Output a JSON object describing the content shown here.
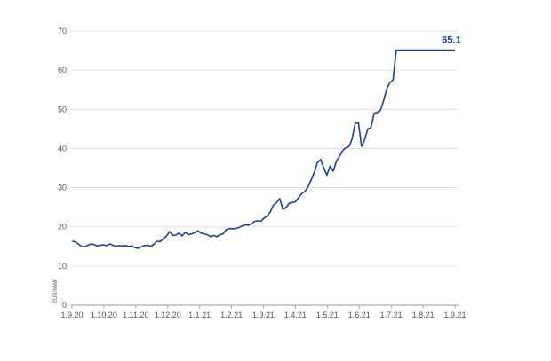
{
  "chart_data": {
    "type": "line",
    "title": "",
    "xlabel": "",
    "ylabel": "EUR/MWh",
    "ylim": [
      0,
      70
    ],
    "yticks": [
      0,
      10,
      20,
      30,
      40,
      50,
      60,
      70
    ],
    "grid": true,
    "legend": "none",
    "x_tick_labels": [
      "1.9.20",
      "1.10.20",
      "1.11.20",
      "1.12.20",
      "1.1.21",
      "1.2.21",
      "1.3.21",
      "1.4.21",
      "1.5.21",
      "1.6.21",
      "1.7.21",
      "1.8.21",
      "1.9.21"
    ],
    "last_value_label": "65.1",
    "color": "#1f3f8f",
    "series": [
      {
        "x": [
          0,
          3,
          6,
          9,
          12,
          15,
          18,
          21,
          24,
          27,
          30,
          33,
          36,
          39,
          42,
          45,
          48,
          51,
          54,
          57,
          60,
          63,
          66,
          69,
          72,
          75,
          78,
          81,
          84,
          87,
          90,
          93,
          96,
          99,
          102,
          105,
          108,
          111,
          114,
          117,
          120,
          123,
          126,
          129,
          132,
          135,
          138,
          141,
          144,
          147,
          150,
          153,
          156,
          159,
          162,
          165,
          168,
          171,
          174,
          177,
          180,
          183,
          186,
          189,
          192,
          195,
          198,
          201,
          204,
          207,
          210,
          213,
          216,
          219,
          222,
          225,
          228,
          231,
          234,
          237,
          240,
          243,
          246,
          249,
          252,
          255,
          258,
          261,
          264,
          267,
          270,
          273,
          276,
          279,
          282,
          285,
          288,
          291,
          294,
          297,
          300,
          303,
          306,
          309,
          312,
          315,
          318,
          321,
          324,
          327,
          330,
          333,
          336,
          339,
          342,
          345,
          348,
          351,
          354,
          357,
          360,
          363,
          365
        ],
        "values": [
          16.3,
          16.2,
          15.6,
          15.0,
          14.9,
          15.3,
          15.6,
          15.5,
          15.1,
          15.3,
          15.4,
          15.2,
          15.6,
          15.3,
          15.0,
          15.2,
          15.1,
          15.2,
          15.0,
          15.1,
          14.7,
          14.5,
          14.9,
          15.2,
          15.3,
          15.0,
          15.5,
          16.3,
          16.2,
          17.0,
          17.6,
          18.8,
          17.8,
          17.9,
          18.4,
          17.7,
          18.6,
          18.0,
          18.2,
          18.5,
          19.0,
          18.4,
          18.2,
          18.0,
          17.5,
          17.8,
          17.5,
          18.0,
          18.2,
          19.3,
          19.6,
          19.5,
          19.6,
          19.8,
          20.2,
          20.5,
          20.4,
          20.8,
          21.4,
          21.5,
          21.4,
          22.2,
          22.8,
          23.8,
          25.5,
          26.2,
          27.2,
          24.5,
          24.9,
          26.0,
          26.2,
          26.4,
          27.5,
          28.5,
          29.0,
          30.2,
          32.0,
          34.0,
          36.5,
          37.2,
          35.0,
          33.2,
          35.5,
          34.2,
          36.8,
          38.0,
          39.5,
          40.2,
          40.5,
          42.5,
          46.5,
          46.5,
          40.5,
          42.3,
          45.0,
          45.4,
          49.0,
          49.2,
          49.8,
          52.2,
          55.2,
          56.8,
          57.5,
          65.1,
          65.1,
          65.1,
          65.1,
          65.1,
          65.1,
          65.1,
          65.1,
          65.1,
          65.1,
          65.1,
          65.1,
          65.1,
          65.1,
          65.1,
          65.1,
          65.1,
          65.1,
          65.1,
          65.1
        ]
      }
    ]
  }
}
